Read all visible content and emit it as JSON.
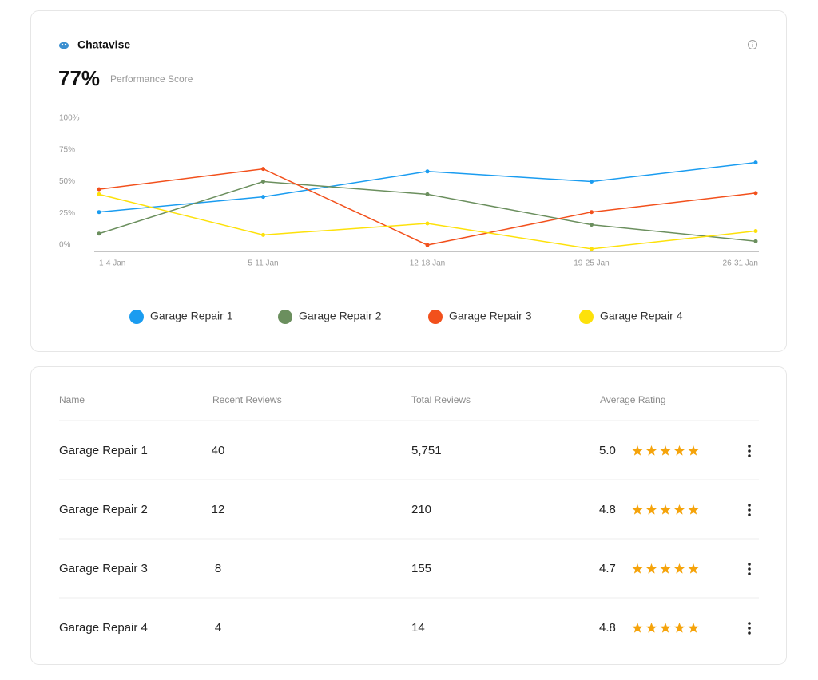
{
  "header": {
    "brand": "Chatavise",
    "score": "77%",
    "score_label": "Performance Score"
  },
  "chart_data": {
    "type": "line",
    "categories": [
      "1-4 Jan",
      "5-11 Jan",
      "12-18 Jan",
      "19-25 Jan",
      "26-31 Jan"
    ],
    "series": [
      {
        "name": "Garage Repair 1",
        "color": "#1a9cf0",
        "values": [
          26,
          38,
          58,
          50,
          65
        ]
      },
      {
        "name": "Garage Repair 2",
        "color": "#6b8f5e",
        "values": [
          9,
          50,
          40,
          16,
          3
        ]
      },
      {
        "name": "Garage Repair 3",
        "color": "#f2501c",
        "values": [
          44,
          60,
          0,
          26,
          41
        ]
      },
      {
        "name": "Garage Repair 4",
        "color": "#fde10a",
        "values": [
          40,
          8,
          17,
          -3,
          11
        ]
      }
    ],
    "ylim": [
      -5,
      100
    ],
    "yticks": [
      {
        "value": 0,
        "label": "0%"
      },
      {
        "value": 25,
        "label": "25%"
      },
      {
        "value": 50,
        "label": "50%"
      },
      {
        "value": 75,
        "label": "75%"
      },
      {
        "value": 100,
        "label": "100%"
      }
    ],
    "grid": false,
    "legend": "bottom"
  },
  "table": {
    "columns": [
      "Name",
      "Recent Reviews",
      "Total Reviews",
      "Average Rating"
    ],
    "rows": [
      [
        "Garage Repair 1",
        "40",
        "5,751",
        "5.0"
      ],
      [
        "Garage Repair 2",
        "12",
        "210",
        "4.8"
      ],
      [
        "Garage Repair 3",
        "8",
        "155",
        "4.7"
      ],
      [
        "Garage Repair 4",
        "4",
        "14",
        "4.8"
      ]
    ]
  }
}
